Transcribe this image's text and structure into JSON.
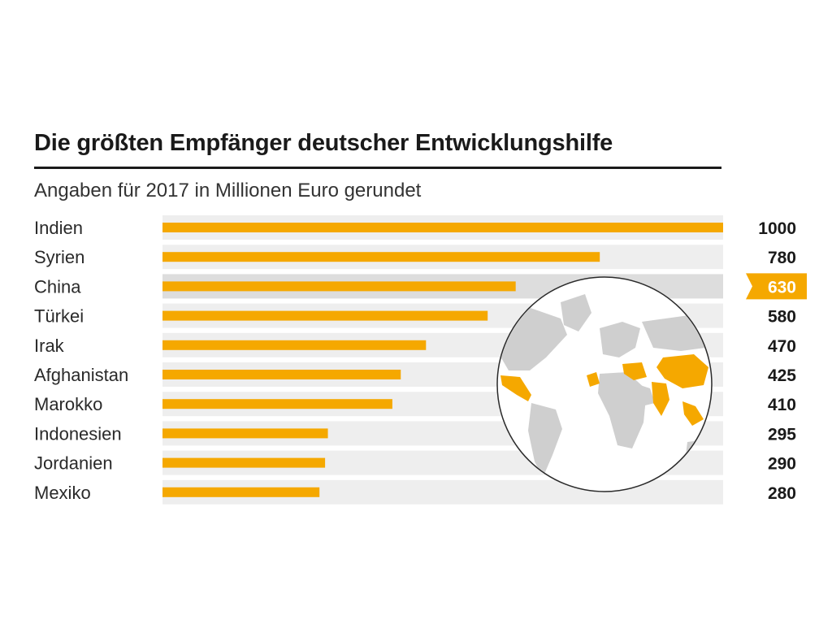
{
  "chart_data": {
    "type": "bar",
    "orientation": "horizontal",
    "title": "Die größten Empfänger deutscher Entwicklungshilfe",
    "subtitle": "Angaben für 2017 in Millionen Euro gerundet",
    "categories": [
      "Indien",
      "Syrien",
      "China",
      "Türkei",
      "Irak",
      "Afghanistan",
      "Marokko",
      "Indonesien",
      "Jordanien",
      "Mexiko"
    ],
    "values": [
      1000,
      780,
      630,
      580,
      470,
      425,
      410,
      295,
      290,
      280
    ],
    "value_labels": [
      "1000",
      "780",
      "630",
      "580",
      "470",
      "425",
      "410",
      "295",
      "290",
      "280"
    ],
    "highlighted_category": "China",
    "xlim": [
      0,
      1000
    ],
    "bar_color": "#f5a800",
    "highlight_color": "#f5a800",
    "row_background": "#eeeeee",
    "highlight_row_background": "#dddddd",
    "map_inset": {
      "land_color": "#cfcfcf",
      "highlight_color": "#f5a800",
      "highlighted_regions": [
        "Mexiko",
        "Marokko",
        "Türkei",
        "Syrien",
        "Irak",
        "Jordanien",
        "Afghanistan",
        "Indien",
        "China",
        "Indonesien"
      ]
    }
  }
}
